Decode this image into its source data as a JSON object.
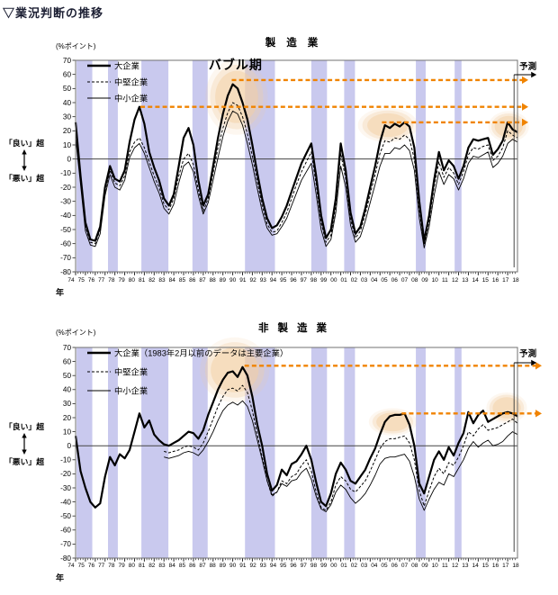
{
  "page_title": "▽業況判断の推移",
  "labels": {
    "unit": "(%ポイント)",
    "year": "年",
    "forecast": "予測",
    "good": "「良い」超",
    "bad": "「悪い」超"
  },
  "colors": {
    "band": "#c9c9ee",
    "orange": "#f08300",
    "highlight": "#f4cfa4",
    "frame": "#707070",
    "zero": "#444444",
    "series": "#000000",
    "title": "#1c1f33"
  },
  "chart_data": [
    {
      "type": "line",
      "title": "製造業",
      "ylabel": "(%ポイント)",
      "ylim": [
        -80,
        70
      ],
      "ytick_step": 10,
      "x_start": 1974,
      "x_end": 2019,
      "x_step_years": 0.5,
      "grid": false,
      "legend_position": "top-left",
      "x_tick_labels": [
        "74",
        "75",
        "76",
        "77",
        "78",
        "79",
        "80",
        "81",
        "82",
        "83",
        "84",
        "85",
        "86",
        "87",
        "88",
        "89",
        "90",
        "91",
        "92",
        "93",
        "94",
        "95",
        "96",
        "97",
        "98",
        "99",
        "00",
        "01",
        "02",
        "03",
        "04",
        "05",
        "06",
        "07",
        "08",
        "09",
        "10",
        "11",
        "12",
        "13",
        "14",
        "15",
        "16",
        "17",
        "18"
      ],
      "legend": [
        {
          "label": "大企業",
          "style": "thick"
        },
        {
          "label": "中堅企業",
          "style": "dashed"
        },
        {
          "label": "中小企業",
          "style": "thin"
        }
      ],
      "annotations": {
        "bubble_label": "バブル期",
        "bubble_x": 1990.3
      },
      "recession_bands": [
        [
          1974.1,
          1975.7
        ],
        [
          1977.3,
          1978.3
        ],
        [
          1980.7,
          1983.45
        ],
        [
          1985.9,
          1987.45
        ],
        [
          1991.25,
          1994.3
        ],
        [
          1998.0,
          1999.6
        ],
        [
          2001.35,
          2002.45
        ],
        [
          2008.65,
          2009.65
        ],
        [
          2012.6,
          2013.3
        ]
      ],
      "dashed_arrows": [
        {
          "y": 56,
          "x_from": 1989.9
        },
        {
          "y": 37,
          "x_from": 1980.6
        },
        {
          "y": 26,
          "x_from": 2005.2
        }
      ],
      "highlights": [
        {
          "x": 1990.4,
          "y": 44,
          "rx_years": 2.6,
          "ry_units": 22
        },
        {
          "x": 2005.8,
          "y": 24,
          "rx_years": 2.5,
          "ry_units": 10
        },
        {
          "x": 2018.1,
          "y": 23,
          "rx_years": 1.7,
          "ry_units": 9
        }
      ],
      "series": [
        {
          "name": "大企業",
          "style": "thick",
          "forecast": 19,
          "values": [
            26,
            -12,
            -45,
            -57,
            -58,
            -48,
            -20,
            -5,
            -14,
            -16,
            -8,
            12,
            28,
            37,
            25,
            5,
            -6,
            -15,
            -28,
            -33,
            -25,
            -5,
            15,
            22,
            10,
            -15,
            -33,
            -25,
            -5,
            15,
            32,
            45,
            53,
            50,
            40,
            28,
            10,
            -10,
            -28,
            -42,
            -49,
            -47,
            -41,
            -33,
            -23,
            -13,
            -3,
            4,
            11,
            -12,
            -40,
            -56,
            -50,
            -28,
            11,
            -8,
            -38,
            -53,
            -48,
            -35,
            -20,
            -5,
            12,
            24,
            22,
            25,
            23,
            26,
            23,
            8,
            -30,
            -58,
            -40,
            -15,
            5,
            -8,
            -1,
            -5,
            -14,
            -5,
            8,
            14,
            13,
            14,
            15,
            3,
            7,
            13,
            26,
            21
          ]
        },
        {
          "name": "中堅企業",
          "style": "dashed",
          "forecast": 15,
          "values": [
            20,
            -15,
            -48,
            -59,
            -60,
            -50,
            -23,
            -8,
            -17,
            -19,
            -12,
            5,
            12,
            15,
            8,
            -2,
            -12,
            -20,
            -32,
            -36,
            -28,
            -12,
            0,
            4,
            -4,
            -22,
            -37,
            -28,
            -10,
            8,
            22,
            33,
            40,
            38,
            30,
            18,
            2,
            -16,
            -33,
            -46,
            -52,
            -51,
            -45,
            -38,
            -28,
            -18,
            -9,
            -2,
            5,
            -18,
            -45,
            -59,
            -54,
            -33,
            4,
            -14,
            -43,
            -56,
            -51,
            -39,
            -25,
            -11,
            4,
            13,
            12,
            15,
            14,
            17,
            14,
            0,
            -36,
            -61,
            -44,
            -20,
            -2,
            -13,
            -6,
            -10,
            -18,
            -9,
            3,
            8,
            7,
            9,
            10,
            -1,
            2,
            8,
            20,
            17
          ]
        },
        {
          "name": "中小企業",
          "style": "thin",
          "forecast": 12,
          "values": [
            15,
            -18,
            -51,
            -61,
            -62,
            -53,
            -26,
            -11,
            -20,
            -22,
            -15,
            1,
            8,
            11,
            4,
            -6,
            -16,
            -24,
            -35,
            -39,
            -32,
            -17,
            -5,
            -2,
            -9,
            -26,
            -39,
            -31,
            -15,
            1,
            16,
            27,
            34,
            32,
            24,
            11,
            -4,
            -21,
            -37,
            -49,
            -54,
            -53,
            -48,
            -42,
            -33,
            -24,
            -15,
            -9,
            -3,
            -25,
            -50,
            -62,
            -57,
            -38,
            -5,
            -20,
            -47,
            -59,
            -55,
            -44,
            -31,
            -18,
            -5,
            4,
            4,
            8,
            7,
            10,
            6,
            -8,
            -42,
            -63,
            -48,
            -26,
            -9,
            -18,
            -11,
            -14,
            -22,
            -14,
            -3,
            2,
            1,
            3,
            5,
            -6,
            -3,
            2,
            11,
            14
          ]
        }
      ]
    },
    {
      "type": "line",
      "title": "非製造業",
      "ylabel": "(%ポイント)",
      "ylim": [
        -80,
        70
      ],
      "ytick_step": 10,
      "x_start": 1974,
      "x_end": 2019,
      "x_step_years": 0.5,
      "grid": false,
      "legend_position": "top-left",
      "x_tick_labels": [
        "74",
        "75",
        "76",
        "77",
        "78",
        "79",
        "80",
        "81",
        "82",
        "83",
        "84",
        "85",
        "86",
        "87",
        "88",
        "89",
        "90",
        "91",
        "92",
        "93",
        "94",
        "95",
        "96",
        "97",
        "98",
        "99",
        "00",
        "01",
        "02",
        "03",
        "04",
        "05",
        "06",
        "07",
        "08",
        "09",
        "10",
        "11",
        "12",
        "13",
        "14",
        "15",
        "16",
        "17",
        "18"
      ],
      "legend": [
        {
          "label": "大企業（1983年2月以前のデータは主要企業）",
          "style": "thick"
        },
        {
          "label": "中堅企業",
          "style": "dashed"
        },
        {
          "label": "中小企業",
          "style": "thin"
        }
      ],
      "annotations": {},
      "recession_bands": [
        [
          1974.1,
          1975.7
        ],
        [
          1977.3,
          1978.3
        ],
        [
          1980.7,
          1983.45
        ],
        [
          1985.9,
          1987.45
        ],
        [
          1991.25,
          1994.3
        ],
        [
          1998.0,
          1999.6
        ],
        [
          2001.35,
          2002.45
        ],
        [
          2008.65,
          2009.65
        ],
        [
          2012.6,
          2013.3
        ]
      ],
      "dashed_arrows": [
        {
          "y": 57,
          "x_from": 1991.2
        },
        {
          "y": 23,
          "x_from": 2007.2
        }
      ],
      "highlights": [
        {
          "x": 1990.2,
          "y": 54,
          "rx_years": 2.9,
          "ry_units": 19
        },
        {
          "x": 2006.3,
          "y": 17,
          "rx_years": 2.0,
          "ry_units": 8
        },
        {
          "x": 2017.9,
          "y": 27,
          "rx_years": 1.7,
          "ry_units": 9
        }
      ],
      "series": [
        {
          "name": "大企業",
          "style": "thick",
          "forecast": 21,
          "values": [
            7,
            -18,
            -30,
            -40,
            -44,
            -41,
            -22,
            -8,
            -14,
            -6,
            -9,
            -3,
            10,
            23,
            13,
            18,
            8,
            4,
            1,
            0,
            2,
            4,
            7,
            10,
            9,
            5,
            11,
            22,
            31,
            40,
            47,
            52,
            53,
            49,
            56,
            50,
            35,
            15,
            0,
            -20,
            -32,
            -28,
            -17,
            -21,
            -13,
            -11,
            -6,
            0,
            -10,
            -26,
            -40,
            -43,
            -34,
            -20,
            -12,
            -17,
            -25,
            -27,
            -22,
            -17,
            -9,
            -2,
            8,
            17,
            21,
            22,
            22,
            23,
            15,
            0,
            -27,
            -34,
            -22,
            -10,
            -4,
            -10,
            -1,
            -7,
            2,
            9,
            24,
            16,
            22,
            25,
            17,
            19,
            21,
            23,
            24,
            23
          ]
        },
        {
          "name": "中堅企業",
          "style": "dashed",
          "forecast": 16,
          "values": [
            null,
            null,
            null,
            null,
            null,
            null,
            null,
            null,
            null,
            null,
            null,
            null,
            null,
            null,
            null,
            null,
            null,
            null,
            -4,
            -5,
            -4,
            -3,
            -1,
            0,
            -1,
            -3,
            2,
            10,
            19,
            28,
            35,
            40,
            41,
            39,
            43,
            38,
            25,
            8,
            -8,
            -25,
            -36,
            -33,
            -25,
            -27,
            -22,
            -20,
            -14,
            -10,
            -18,
            -33,
            -44,
            -46,
            -40,
            -28,
            -22,
            -25,
            -31,
            -33,
            -29,
            -25,
            -18,
            -10,
            -2,
            3,
            5,
            5,
            6,
            7,
            2,
            -10,
            -32,
            -43,
            -32,
            -22,
            -16,
            -20,
            -12,
            -14,
            -8,
            0,
            10,
            7,
            12,
            15,
            11,
            12,
            13,
            15,
            17,
            19
          ]
        },
        {
          "name": "中小企業",
          "style": "thin",
          "forecast": 8,
          "values": [
            null,
            null,
            null,
            null,
            null,
            null,
            null,
            null,
            null,
            null,
            null,
            null,
            null,
            null,
            null,
            null,
            null,
            null,
            -8,
            -9,
            -8,
            -7,
            -5,
            -4,
            -5,
            -7,
            -3,
            3,
            10,
            18,
            25,
            29,
            31,
            29,
            32,
            28,
            18,
            4,
            -10,
            -25,
            -35,
            -33,
            -27,
            -29,
            -25,
            -24,
            -19,
            -16,
            -24,
            -36,
            -45,
            -47,
            -42,
            -33,
            -28,
            -31,
            -37,
            -41,
            -38,
            -34,
            -28,
            -21,
            -13,
            -9,
            -8,
            -8,
            -7,
            -6,
            -11,
            -22,
            -38,
            -46,
            -38,
            -31,
            -26,
            -28,
            -20,
            -22,
            -16,
            -10,
            -2,
            3,
            -1,
            2,
            4,
            0,
            1,
            3,
            7,
            10
          ]
        }
      ]
    }
  ]
}
